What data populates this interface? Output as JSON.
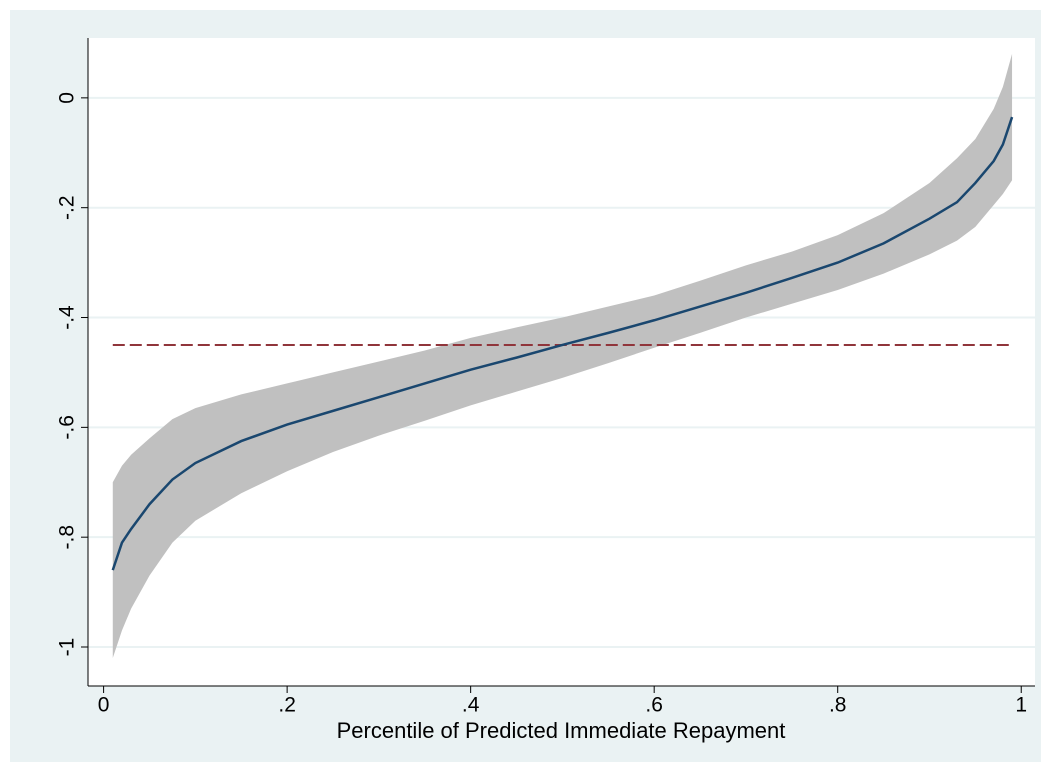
{
  "chart_data": {
    "type": "line",
    "x_label": "Percentile of Predicted Immediate Repayment",
    "x": [
      0.01,
      0.02,
      0.03,
      0.05,
      0.075,
      0.1,
      0.15,
      0.2,
      0.25,
      0.3,
      0.35,
      0.4,
      0.45,
      0.5,
      0.55,
      0.6,
      0.65,
      0.7,
      0.75,
      0.8,
      0.85,
      0.9,
      0.93,
      0.95,
      0.97,
      0.98,
      0.99
    ],
    "series": [
      {
        "color": "#1a476f",
        "values": [
          -0.86,
          -0.81,
          -0.785,
          -0.74,
          -0.695,
          -0.665,
          -0.625,
          -0.595,
          -0.57,
          -0.545,
          -0.52,
          -0.495,
          -0.473,
          -0.45,
          -0.428,
          -0.405,
          -0.38,
          -0.355,
          -0.328,
          -0.3,
          -0.265,
          -0.22,
          -0.19,
          -0.155,
          -0.115,
          -0.085,
          -0.035
        ]
      }
    ],
    "band": {
      "color": "#c0c0c0",
      "upper": [
        -0.7,
        -0.67,
        -0.65,
        -0.62,
        -0.585,
        -0.565,
        -0.54,
        -0.52,
        -0.5,
        -0.48,
        -0.46,
        -0.437,
        -0.418,
        -0.4,
        -0.38,
        -0.36,
        -0.333,
        -0.305,
        -0.28,
        -0.25,
        -0.21,
        -0.155,
        -0.11,
        -0.075,
        -0.02,
        0.02,
        0.08
      ],
      "lower": [
        -1.02,
        -0.97,
        -0.93,
        -0.87,
        -0.81,
        -0.77,
        -0.72,
        -0.68,
        -0.645,
        -0.615,
        -0.588,
        -0.56,
        -0.535,
        -0.51,
        -0.483,
        -0.455,
        -0.428,
        -0.4,
        -0.375,
        -0.35,
        -0.32,
        -0.285,
        -0.26,
        -0.235,
        -0.195,
        -0.175,
        -0.15
      ]
    },
    "reference_line": {
      "value": -0.45,
      "color": "#90353b"
    },
    "xlim": [
      -0.017,
      1.015
    ],
    "ylim": [
      -1.071,
      0.109
    ],
    "xticks": [
      0,
      {
        "value": 0.2,
        "label": ".2"
      },
      {
        "value": 0.4,
        "label": ".4"
      },
      {
        "value": 0.6,
        "label": ".6"
      },
      {
        "value": 0.8,
        "label": ".8"
      },
      1
    ],
    "yticks": [
      {
        "value": -1,
        "label": "-1"
      },
      {
        "value": -0.8,
        "label": "-.8"
      },
      {
        "value": -0.6,
        "label": "-.6"
      },
      {
        "value": -0.4,
        "label": "-.4"
      },
      {
        "value": -0.2,
        "label": "-.2"
      },
      0
    ],
    "grid": true
  }
}
